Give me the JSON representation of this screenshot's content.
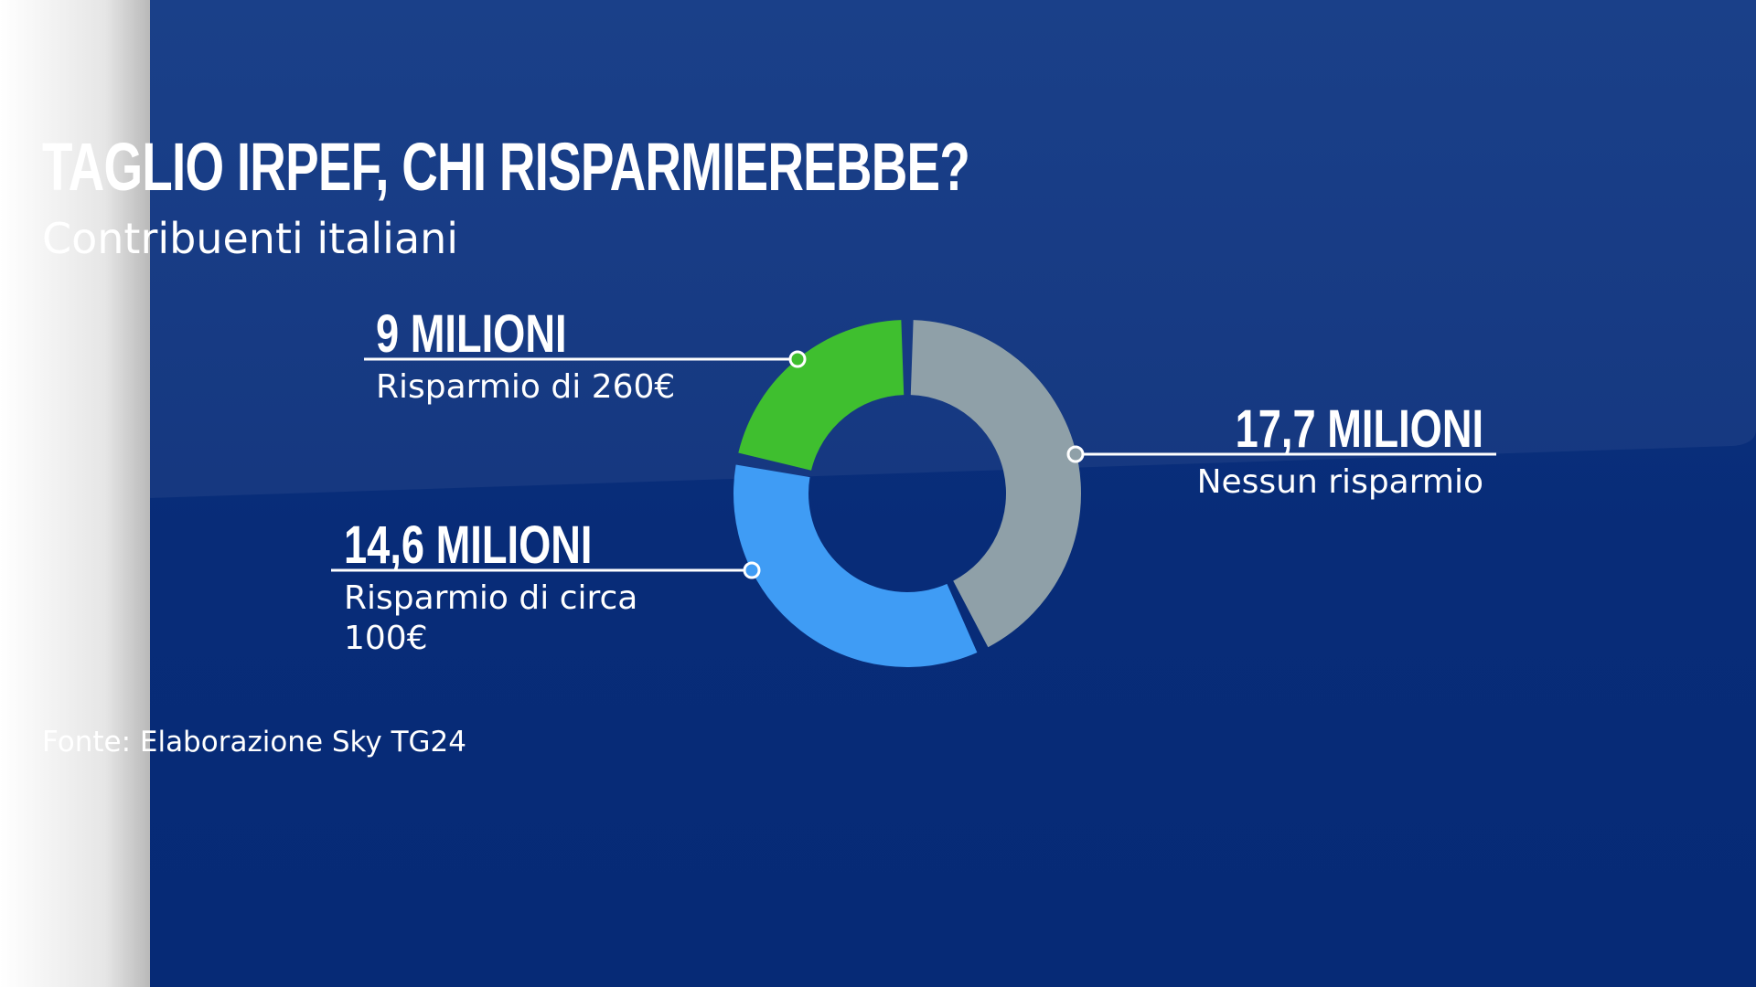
{
  "title": "TAGLIO IRPEF, CHI RISPARMIEREBBE?",
  "subtitle": "Contribuenti italiani",
  "source": "Fonte: Elaborazione Sky TG24",
  "colors": {
    "background": "#082c78",
    "leader_line": "#ffffff"
  },
  "chart_data": {
    "type": "pie",
    "donut": true,
    "unit": "milioni",
    "slices": [
      {
        "value": 17.7,
        "label_value": "17,7 MILIONI",
        "label_desc": "Nessun risparmio",
        "color": "#8fa0a8"
      },
      {
        "value": 14.6,
        "label_value": "14,6 MILIONI",
        "label_desc": "Risparmio di circa 100€",
        "color": "#3f9cf5"
      },
      {
        "value": 9,
        "label_value": "9 MILIONI",
        "label_desc": "Risparmio di 260€",
        "color": "#3fbf2f"
      }
    ]
  }
}
